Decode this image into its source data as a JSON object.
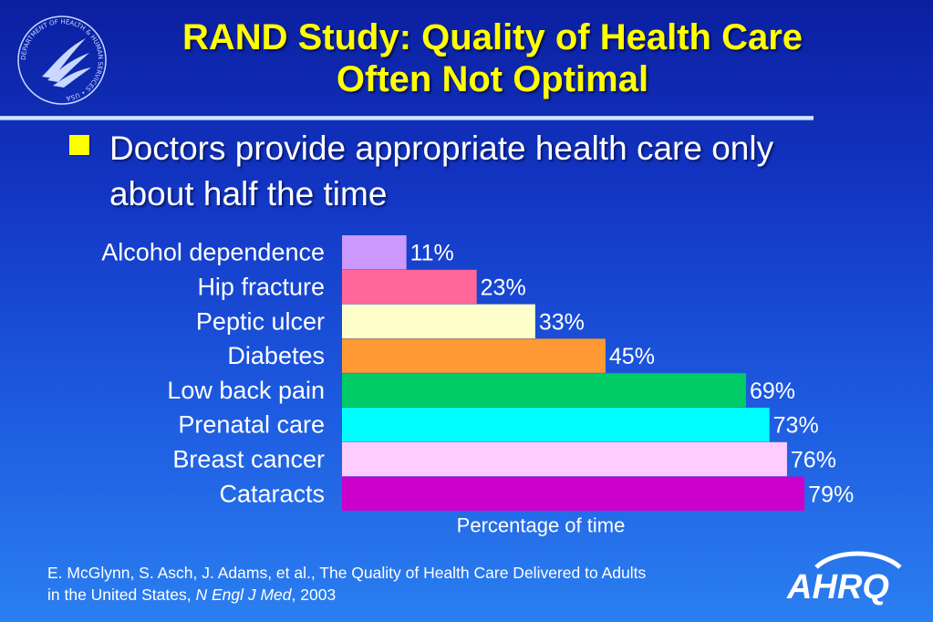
{
  "title_line1": "RAND Study:  Quality of Health Care",
  "title_line2": "Often Not Optimal",
  "bullet": "Doctors provide appropriate health care only about half the time",
  "seal_text": "DEPARTMENT OF HEALTH & HUMAN SERVICES • USA",
  "logo_text": "AHRQ",
  "citation": {
    "line1": "E. McGlynn, S. Asch, J. Adams, et al., The Quality of Health Care Delivered to Adults",
    "line2_prefix": "in the United States, ",
    "journal": "N Engl J Med",
    "year": ", 2003"
  },
  "colors": {
    "title": "#ffff00",
    "bullet_mark": "#ffff00"
  },
  "chart_data": {
    "type": "bar",
    "orientation": "horizontal",
    "categories": [
      "Alcohol dependence",
      "Hip fracture",
      "Peptic ulcer",
      "Diabetes",
      "Low back pain",
      "Prenatal care",
      "Breast cancer",
      "Cataracts"
    ],
    "values": [
      11,
      23,
      33,
      45,
      69,
      73,
      76,
      79
    ],
    "value_labels": [
      "11%",
      "23%",
      "33%",
      "45%",
      "69%",
      "73%",
      "76%",
      "79%"
    ],
    "colors": [
      "#cc99ff",
      "#ff6699",
      "#ffffcc",
      "#ff9933",
      "#00cc66",
      "#00ffff",
      "#ffccff",
      "#cc00cc"
    ],
    "xlabel": "Percentage of time",
    "xlim": [
      0,
      100
    ],
    "grid": false,
    "legend": false
  }
}
